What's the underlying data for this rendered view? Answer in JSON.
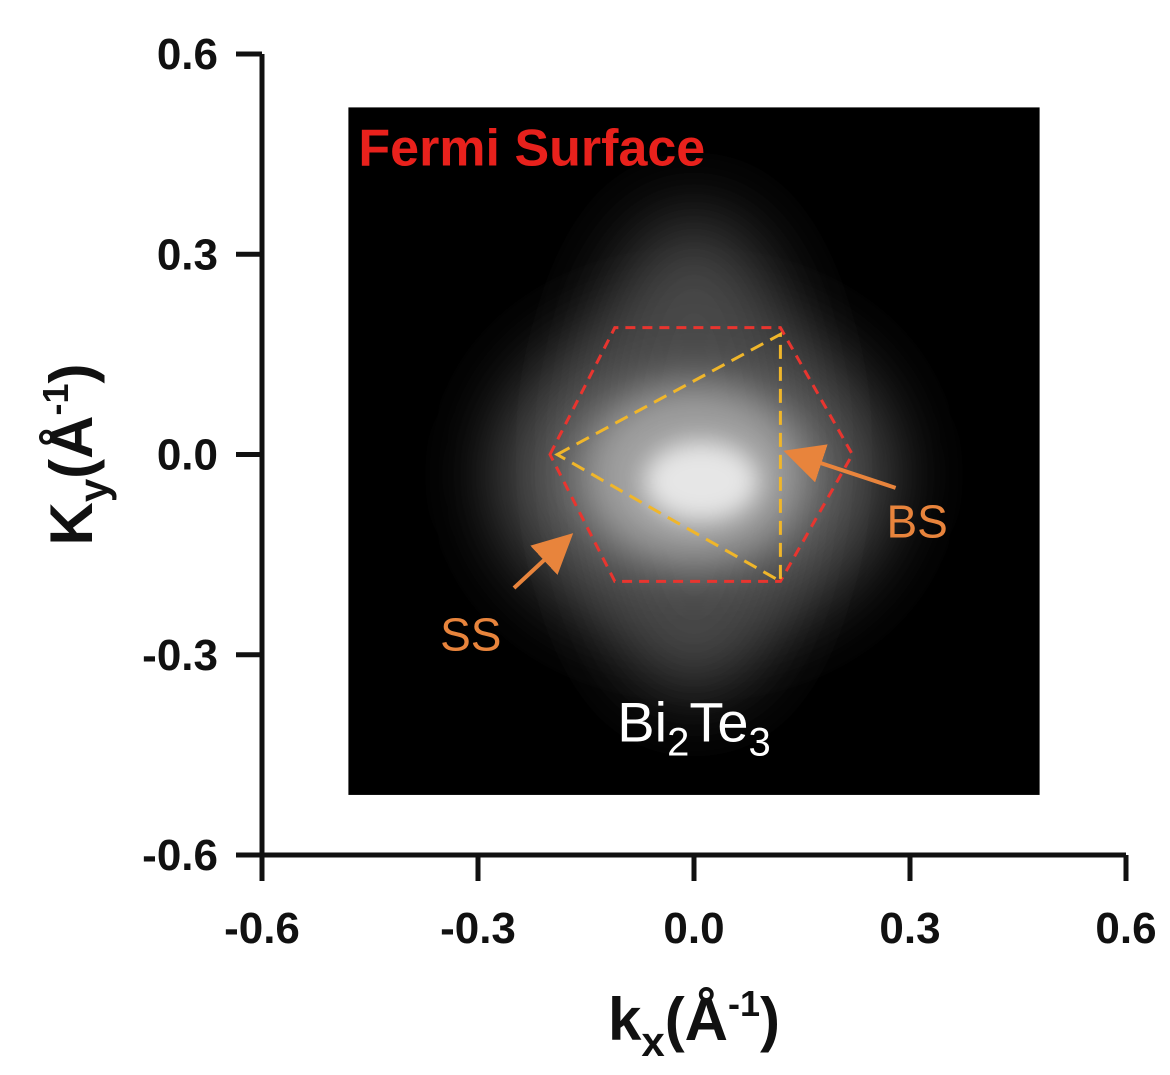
{
  "chart_data": {
    "type": "heatmap",
    "title": "Fermi Surface",
    "material": {
      "base1": "Bi",
      "sub1": "2",
      "base2": "Te",
      "sub2": "3"
    },
    "xlabel": {
      "base": "k",
      "sub": "x",
      "unit_open": "(Å",
      "sup": "-1",
      "unit_close": ")"
    },
    "ylabel": {
      "base": "K",
      "sub": "y",
      "unit_open": "(Å",
      "sup": "-1",
      "unit_close": ")"
    },
    "xlim": [
      -0.6,
      0.6
    ],
    "ylim": [
      -0.6,
      0.6
    ],
    "xticks": [
      "-0.6",
      "-0.3",
      "0.0",
      "0.3",
      "0.6"
    ],
    "yticks": [
      "0.6",
      "0.3",
      "0.0",
      "-0.3",
      "-0.6"
    ],
    "xtick_values": [
      -0.6,
      -0.3,
      0.0,
      0.3,
      0.6
    ],
    "ytick_values": [
      0.6,
      0.3,
      0.0,
      -0.3,
      -0.6
    ],
    "map_extent": {
      "x": [
        -0.48,
        0.48
      ],
      "y": [
        -0.51,
        0.52
      ]
    },
    "hexagon": {
      "color": "#e8352f",
      "vertices": [
        [
          -0.2,
          0.0
        ],
        [
          -0.11,
          0.19
        ],
        [
          0.12,
          0.19
        ],
        [
          0.22,
          0.0
        ],
        [
          0.12,
          -0.19
        ],
        [
          -0.11,
          -0.19
        ]
      ]
    },
    "triangle": {
      "color": "#f0b62a",
      "vertices": [
        [
          -0.19,
          0.0
        ],
        [
          0.12,
          0.18
        ],
        [
          0.12,
          -0.19
        ]
      ]
    },
    "annotations": [
      {
        "text": "BS",
        "color": "#e8843c",
        "arrow_from": [
          0.28,
          -0.05
        ],
        "arrow_to": [
          0.14,
          0.0
        ],
        "label_at": [
          0.31,
          -0.1
        ]
      },
      {
        "text": "SS",
        "color": "#e8843c",
        "arrow_from": [
          -0.25,
          -0.2
        ],
        "arrow_to": [
          -0.18,
          -0.13
        ],
        "label_at": [
          -0.31,
          -0.27
        ]
      }
    ],
    "grid": false,
    "colors": {
      "background": "#000000",
      "intensity": "#ffffff",
      "title": "#e8211c"
    }
  }
}
